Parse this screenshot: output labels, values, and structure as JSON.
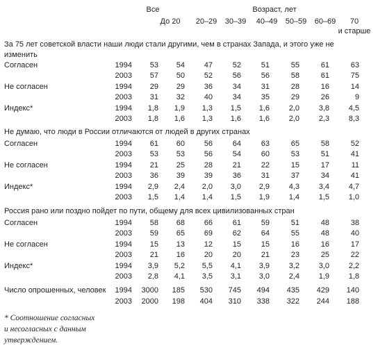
{
  "header": {
    "all": "Все",
    "age_group": "Возраст, лет",
    "columns": [
      "До 20",
      "20–29",
      "30–39",
      "40–49",
      "50–59",
      "60–69",
      "70\nи старше"
    ]
  },
  "sections": [
    {
      "title": "За 75 лет советской власти наши люди стали другими, чем в странах Запада, и этого уже не изменить",
      "rows": [
        {
          "label": "Согласен",
          "year": "1994",
          "values": [
            "53",
            "54",
            "47",
            "52",
            "51",
            "55",
            "61",
            "63"
          ]
        },
        {
          "year": "2003",
          "values": [
            "57",
            "50",
            "52",
            "56",
            "56",
            "58",
            "61",
            "75"
          ]
        },
        {
          "label": "Не согласен",
          "year": "1994",
          "values": [
            "29",
            "29",
            "36",
            "34",
            "31",
            "28",
            "16",
            "14"
          ]
        },
        {
          "year": "2003",
          "values": [
            "31",
            "32",
            "40",
            "34",
            "35",
            "29",
            "26",
            "9"
          ]
        },
        {
          "label": "Индекс*",
          "year": "1994",
          "values": [
            "1,8",
            "1,9",
            "1,3",
            "1,5",
            "1,6",
            "2,0",
            "3,8",
            "4,5"
          ]
        },
        {
          "year": "2003",
          "values": [
            "1,8",
            "1,6",
            "1,3",
            "1,6",
            "1,6",
            "2,0",
            "2,3",
            "8,3"
          ]
        }
      ]
    },
    {
      "title": "Не думаю, что люди в России отличаются от людей в других странах",
      "rows": [
        {
          "label": "Согласен",
          "year": "1994",
          "values": [
            "61",
            "60",
            "56",
            "64",
            "63",
            "65",
            "58",
            "52"
          ]
        },
        {
          "year": "2003",
          "values": [
            "53",
            "53",
            "56",
            "54",
            "60",
            "53",
            "51",
            "41"
          ]
        },
        {
          "label": "Не согласен",
          "year": "1994",
          "values": [
            "21",
            "25",
            "28",
            "21",
            "22",
            "15",
            "17",
            "11"
          ]
        },
        {
          "year": "2003",
          "values": [
            "36",
            "39",
            "39",
            "36",
            "31",
            "37",
            "34",
            "41"
          ]
        },
        {
          "label": "Индекс*",
          "year": "1994",
          "values": [
            "2,9",
            "2,4",
            "2,0",
            "3,0",
            "2,9",
            "4,3",
            "3,4",
            "4,7"
          ]
        },
        {
          "year": "2003",
          "values": [
            "1,5",
            "1,4",
            "1,4",
            "1,5",
            "1,9",
            "1,4",
            "1,5",
            "1,0"
          ]
        }
      ]
    },
    {
      "title": "Россия рано или поздно пойдет по пути, общему для всех цивилизованных стран",
      "rows": [
        {
          "label": "Согласен",
          "year": "1994",
          "values": [
            "58",
            "68",
            "66",
            "61",
            "59",
            "51",
            "48",
            "38"
          ]
        },
        {
          "year": "2003",
          "values": [
            "59",
            "65",
            "69",
            "62",
            "64",
            "55",
            "48",
            "40"
          ]
        },
        {
          "label": "Не согласен",
          "year": "1994",
          "values": [
            "15",
            "13",
            "12",
            "15",
            "15",
            "16",
            "16",
            "17"
          ]
        },
        {
          "year": "2003",
          "values": [
            "21",
            "16",
            "20",
            "20",
            "21",
            "23",
            "25",
            "22"
          ]
        },
        {
          "label": "Индекс*",
          "year": "1994",
          "values": [
            "3,9",
            "5,2",
            "5,5",
            "4,1",
            "3,9",
            "3,2",
            "3,0",
            "2,2"
          ]
        },
        {
          "year": "2003",
          "values": [
            "2,8",
            "4,1",
            "3,5",
            "3,1",
            "3,0",
            "2,4",
            "1,9",
            "1,8"
          ]
        }
      ]
    }
  ],
  "respondents": {
    "label": "Число опрошенных, человек",
    "rows": [
      {
        "year": "1994",
        "values": [
          "3000",
          "185",
          "530",
          "745",
          "494",
          "435",
          "429",
          "140"
        ]
      },
      {
        "year": "2003",
        "values": [
          "2000",
          "198",
          "404",
          "310",
          "338",
          "322",
          "244",
          "188"
        ]
      }
    ]
  },
  "footnote": "* Соотношение согласных\nи несогласных с данным\nутверждением."
}
